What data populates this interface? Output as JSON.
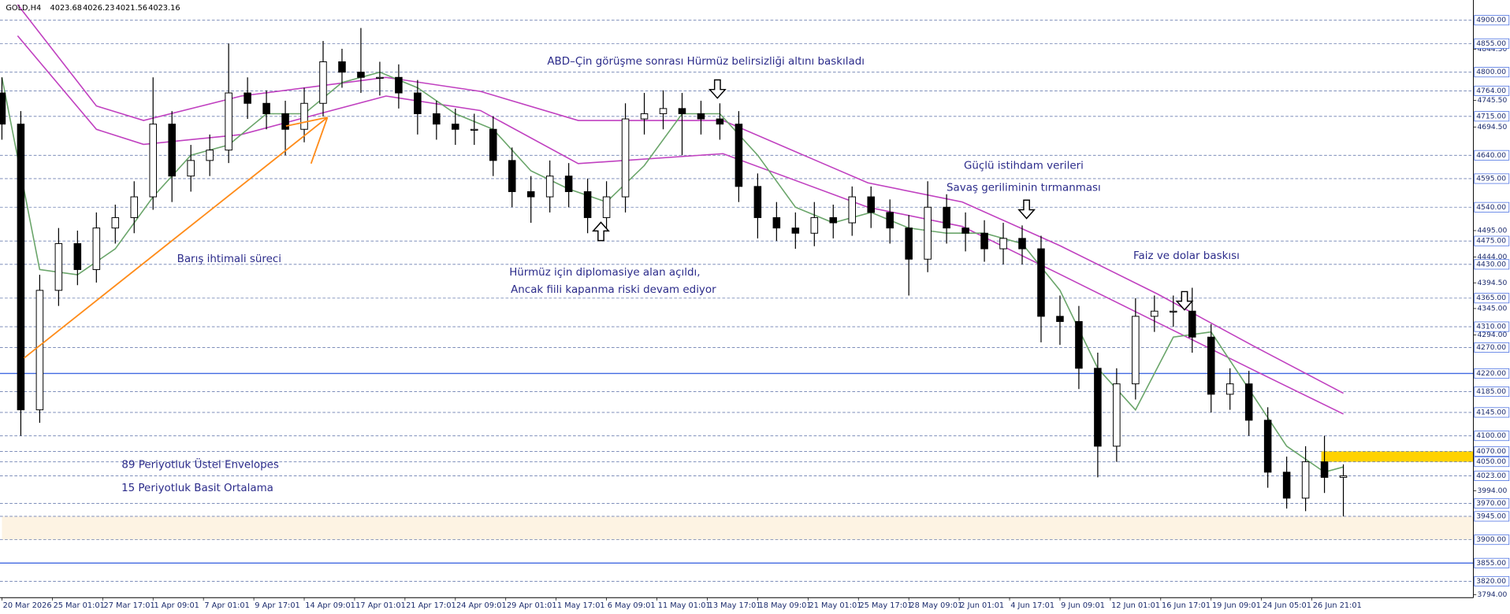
{
  "chart_data": {
    "type": "candlestick",
    "header_symbol": "GOLD,H4",
    "header_ohlc": [
      4023.68,
      4026.23,
      4021.56,
      4023.16
    ],
    "xlim": [
      0,
      467.3
    ],
    "ylim": [
      3788.5,
      4938.9
    ],
    "xticks": [
      {
        "value": 0,
        "label": "20 Mar 2026"
      },
      {
        "value": 16,
        "label": "25 Mar 01:01"
      },
      {
        "value": 32,
        "label": "27 Mar 17:01"
      },
      {
        "value": 48,
        "label": "1 Apr 09:01"
      },
      {
        "value": 64,
        "label": "7 Apr 01:01"
      },
      {
        "value": 80,
        "label": "9 Apr 17:01"
      },
      {
        "value": 96,
        "label": "14 Apr 09:01"
      },
      {
        "value": 112,
        "label": "17 Apr 01:01"
      },
      {
        "value": 128,
        "label": "21 Apr 17:01"
      },
      {
        "value": 144,
        "label": "24 Apr 09:01"
      },
      {
        "value": 160,
        "label": "29 Apr 01:01"
      },
      {
        "value": 176,
        "label": "1 May 17:01"
      },
      {
        "value": 192,
        "label": "6 May 09:01"
      },
      {
        "value": 208,
        "label": "11 May 01:01"
      },
      {
        "value": 224,
        "label": "13 May 17:01"
      },
      {
        "value": 240,
        "label": "18 May 09:01"
      },
      {
        "value": 256,
        "label": "21 May 01:01"
      },
      {
        "value": 272,
        "label": "25 May 17:01"
      },
      {
        "value": 288,
        "label": "28 May 09:01"
      },
      {
        "value": 304,
        "label": "2 Jun 01:01"
      },
      {
        "value": 320,
        "label": "4 Jun 17:01"
      },
      {
        "value": 336,
        "label": "9 Jun 09:01"
      },
      {
        "value": 352,
        "label": "12 Jun 01:01"
      },
      {
        "value": 368,
        "label": "16 Jun 17:01"
      },
      {
        "value": 384,
        "label": "19 Jun 09:01"
      },
      {
        "value": 400,
        "label": "24 Jun 05:01"
      },
      {
        "value": 416,
        "label": "26 Jun 21:01"
      }
    ],
    "yticks": [
      {
        "value": 4844.3,
        "label": "4844.30"
      },
      {
        "value": 4745.5,
        "label": "4745.50"
      },
      {
        "value": 4694.5,
        "label": "4694.50"
      },
      {
        "value": 4495,
        "label": "4495.00"
      },
      {
        "value": 4444,
        "label": "4444.00"
      },
      {
        "value": 4394.5,
        "label": "4394.50"
      },
      {
        "value": 4345,
        "label": "4345.00"
      },
      {
        "value": 4294,
        "label": "4294.00"
      },
      {
        "value": 3994,
        "label": "3994.00"
      },
      {
        "value": 3794,
        "label": "3794.00"
      }
    ],
    "levels": [
      {
        "value": 4900,
        "label": "4900.00"
      },
      {
        "value": 4855,
        "label": "4855.00"
      },
      {
        "value": 4800,
        "label": "4800.00"
      },
      {
        "value": 4764,
        "label": "4764.00"
      },
      {
        "value": 4715,
        "label": "4715.00"
      },
      {
        "value": 4640,
        "label": "4640.00"
      },
      {
        "value": 4595,
        "label": "4595.00"
      },
      {
        "value": 4540,
        "label": "4540.00"
      },
      {
        "value": 4475,
        "label": "4475.00"
      },
      {
        "value": 4430,
        "label": "4430.00"
      },
      {
        "value": 4365,
        "label": "4365.00"
      },
      {
        "value": 4310,
        "label": "4310.00"
      },
      {
        "value": 4270,
        "label": "4270.00"
      },
      {
        "value": 4220,
        "label": "4220.00"
      },
      {
        "value": 4185,
        "label": "4185.00"
      },
      {
        "value": 4145,
        "label": "4145.00"
      },
      {
        "value": 4100,
        "label": "4100.00"
      },
      {
        "value": 4070,
        "label": "4070.00"
      },
      {
        "value": 4050,
        "label": "4050.00"
      },
      {
        "value": 4023,
        "label": "4023.00"
      },
      {
        "value": 3970,
        "label": "3970.00"
      },
      {
        "value": 3945,
        "label": "3945.00"
      },
      {
        "value": 3900,
        "label": "3900.00"
      },
      {
        "value": 3855,
        "label": "3855.00"
      },
      {
        "value": 3820,
        "label": "3820.00"
      }
    ],
    "level_color": "#6c7fb0",
    "solid_levels": [
      4220,
      3855
    ],
    "solid_color": "#4169e1",
    "zones": [
      {
        "from": 3945,
        "to": 3900,
        "x_from": 0,
        "color": "#fdf3e3"
      },
      {
        "from": 4070,
        "to": 4050,
        "x_from": 419,
        "color": "#ffd200"
      }
    ],
    "candles": {
      "color": "#000000",
      "x": [
        0,
        6,
        12,
        18,
        24,
        30,
        36,
        42,
        48,
        54,
        60,
        66,
        72,
        78,
        84,
        90,
        96,
        102,
        108,
        114,
        120,
        126,
        132,
        138,
        144,
        150,
        156,
        162,
        168,
        174,
        180,
        186,
        192,
        198,
        204,
        210,
        216,
        222,
        228,
        234,
        240,
        246,
        252,
        258,
        264,
        270,
        276,
        282,
        288,
        294,
        300,
        306,
        312,
        318,
        324,
        330,
        336,
        342,
        348,
        354,
        360,
        366,
        372,
        378,
        384,
        390,
        396,
        402,
        408,
        414,
        420,
        426
      ],
      "open": [
        4760,
        4700,
        4150,
        4380,
        4470,
        4420,
        4500,
        4520,
        4560,
        4700,
        4600,
        4630,
        4650,
        4760,
        4740,
        4720,
        4690,
        4740,
        4820,
        4800,
        4790,
        4790,
        4760,
        4720,
        4700,
        4690,
        4690,
        4630,
        4570,
        4560,
        4600,
        4570,
        4520,
        4560,
        4710,
        4720,
        4730,
        4720,
        4710,
        4700,
        4580,
        4520,
        4500,
        4490,
        4520,
        4510,
        4560,
        4530,
        4500,
        4440,
        4540,
        4500,
        4490,
        4460,
        4480,
        4460,
        4330,
        4320,
        4230,
        4080,
        4200,
        4330,
        4340,
        4340,
        4290,
        4180,
        4200,
        4130,
        4030,
        3980,
        4050,
        4020
      ],
      "high": [
        4790,
        4725,
        4410,
        4500,
        4495,
        4530,
        4545,
        4590,
        4790,
        4725,
        4660,
        4680,
        4855,
        4790,
        4765,
        4745,
        4770,
        4860,
        4845,
        4885,
        4820,
        4815,
        4785,
        4745,
        4730,
        4720,
        4715,
        4655,
        4600,
        4630,
        4625,
        4595,
        4590,
        4740,
        4760,
        4765,
        4760,
        4745,
        4740,
        4725,
        4605,
        4550,
        4530,
        4550,
        4545,
        4580,
        4580,
        4555,
        4525,
        4590,
        4565,
        4530,
        4515,
        4510,
        4505,
        4485,
        4370,
        4350,
        4260,
        4230,
        4365,
        4370,
        4370,
        4385,
        4315,
        4230,
        4225,
        4155,
        4060,
        4080,
        4100,
        4045
      ],
      "low": [
        4670,
        4100,
        4125,
        4350,
        4390,
        4395,
        4470,
        4490,
        4535,
        4550,
        4570,
        4600,
        4625,
        4710,
        4690,
        4640,
        4665,
        4715,
        4770,
        4760,
        4755,
        4730,
        4680,
        4670,
        4660,
        4660,
        4600,
        4540,
        4510,
        4530,
        4540,
        4490,
        4495,
        4530,
        4680,
        4690,
        4640,
        4680,
        4670,
        4550,
        4480,
        4475,
        4460,
        4465,
        4480,
        4485,
        4500,
        4470,
        4370,
        4415,
        4470,
        4455,
        4435,
        4430,
        4430,
        4280,
        4275,
        4190,
        4020,
        4050,
        4170,
        4300,
        4310,
        4260,
        4145,
        4150,
        4100,
        4000,
        3960,
        3955,
        3990,
        3945
      ],
      "close": [
        4700,
        4150,
        4380,
        4470,
        4420,
        4500,
        4520,
        4560,
        4700,
        4600,
        4630,
        4650,
        4760,
        4740,
        4720,
        4690,
        4740,
        4820,
        4800,
        4790,
        4790,
        4760,
        4720,
        4700,
        4690,
        4690,
        4630,
        4570,
        4560,
        4600,
        4570,
        4520,
        4560,
        4710,
        4720,
        4730,
        4720,
        4710,
        4700,
        4580,
        4520,
        4500,
        4490,
        4520,
        4510,
        4560,
        4530,
        4500,
        4440,
        4540,
        4500,
        4490,
        4460,
        4480,
        4460,
        4330,
        4320,
        4230,
        4080,
        4200,
        4330,
        4340,
        4340,
        4290,
        4180,
        4200,
        4130,
        4030,
        3980,
        4050,
        4020,
        4023
      ]
    },
    "series": [
      {
        "name": "89 Periyotluk Üstel Envelopes",
        "color": "#c040c0",
        "x": [
          5,
          30,
          45,
          76,
          122,
          152,
          183,
          229,
          275,
          305,
          336,
          367,
          398,
          426
        ],
        "upper": [
          4930,
          4735,
          4707,
          4754,
          4790,
          4763,
          4707,
          4707,
          4587,
          4550,
          4466,
          4373,
          4271,
          4182
        ],
        "lower": [
          4870,
          4690,
          4661,
          4680,
          4754,
          4726,
          4624,
          4643,
          4540,
          4503,
          4411,
          4318,
          4225,
          4142
        ]
      },
      {
        "name": "15 Periyotluk Basit Ortalama",
        "color": "#6aa56a",
        "x": [
          0,
          12,
          24,
          36,
          48,
          60,
          72,
          84,
          96,
          108,
          120,
          132,
          144,
          156,
          168,
          180,
          192,
          204,
          216,
          228,
          240,
          252,
          264,
          276,
          288,
          300,
          312,
          324,
          336,
          348,
          360,
          372,
          384,
          396,
          408,
          420,
          426
        ],
        "values": [
          4790,
          4420,
          4410,
          4460,
          4560,
          4640,
          4660,
          4720,
          4720,
          4780,
          4800,
          4770,
          4720,
          4690,
          4610,
          4575,
          4550,
          4620,
          4720,
          4720,
          4640,
          4540,
          4510,
          4530,
          4500,
          4490,
          4490,
          4470,
          4380,
          4230,
          4150,
          4290,
          4300,
          4190,
          4080,
          4030,
          4040
        ]
      }
    ],
    "annotations": [
      "ABD–Çin görüşme sonrası Hürmüz belirsizliği altını baskıladı",
      "Güçlü istihdam verileri",
      "Savaş geriliminin tırmanması",
      "Faiz ve dolar baskısı",
      "Barış ihtimali süreci",
      "Hürmüz için diplomasiye alan açıldı,",
      "Ancak fiili kapanma riski devam ediyor"
    ]
  }
}
